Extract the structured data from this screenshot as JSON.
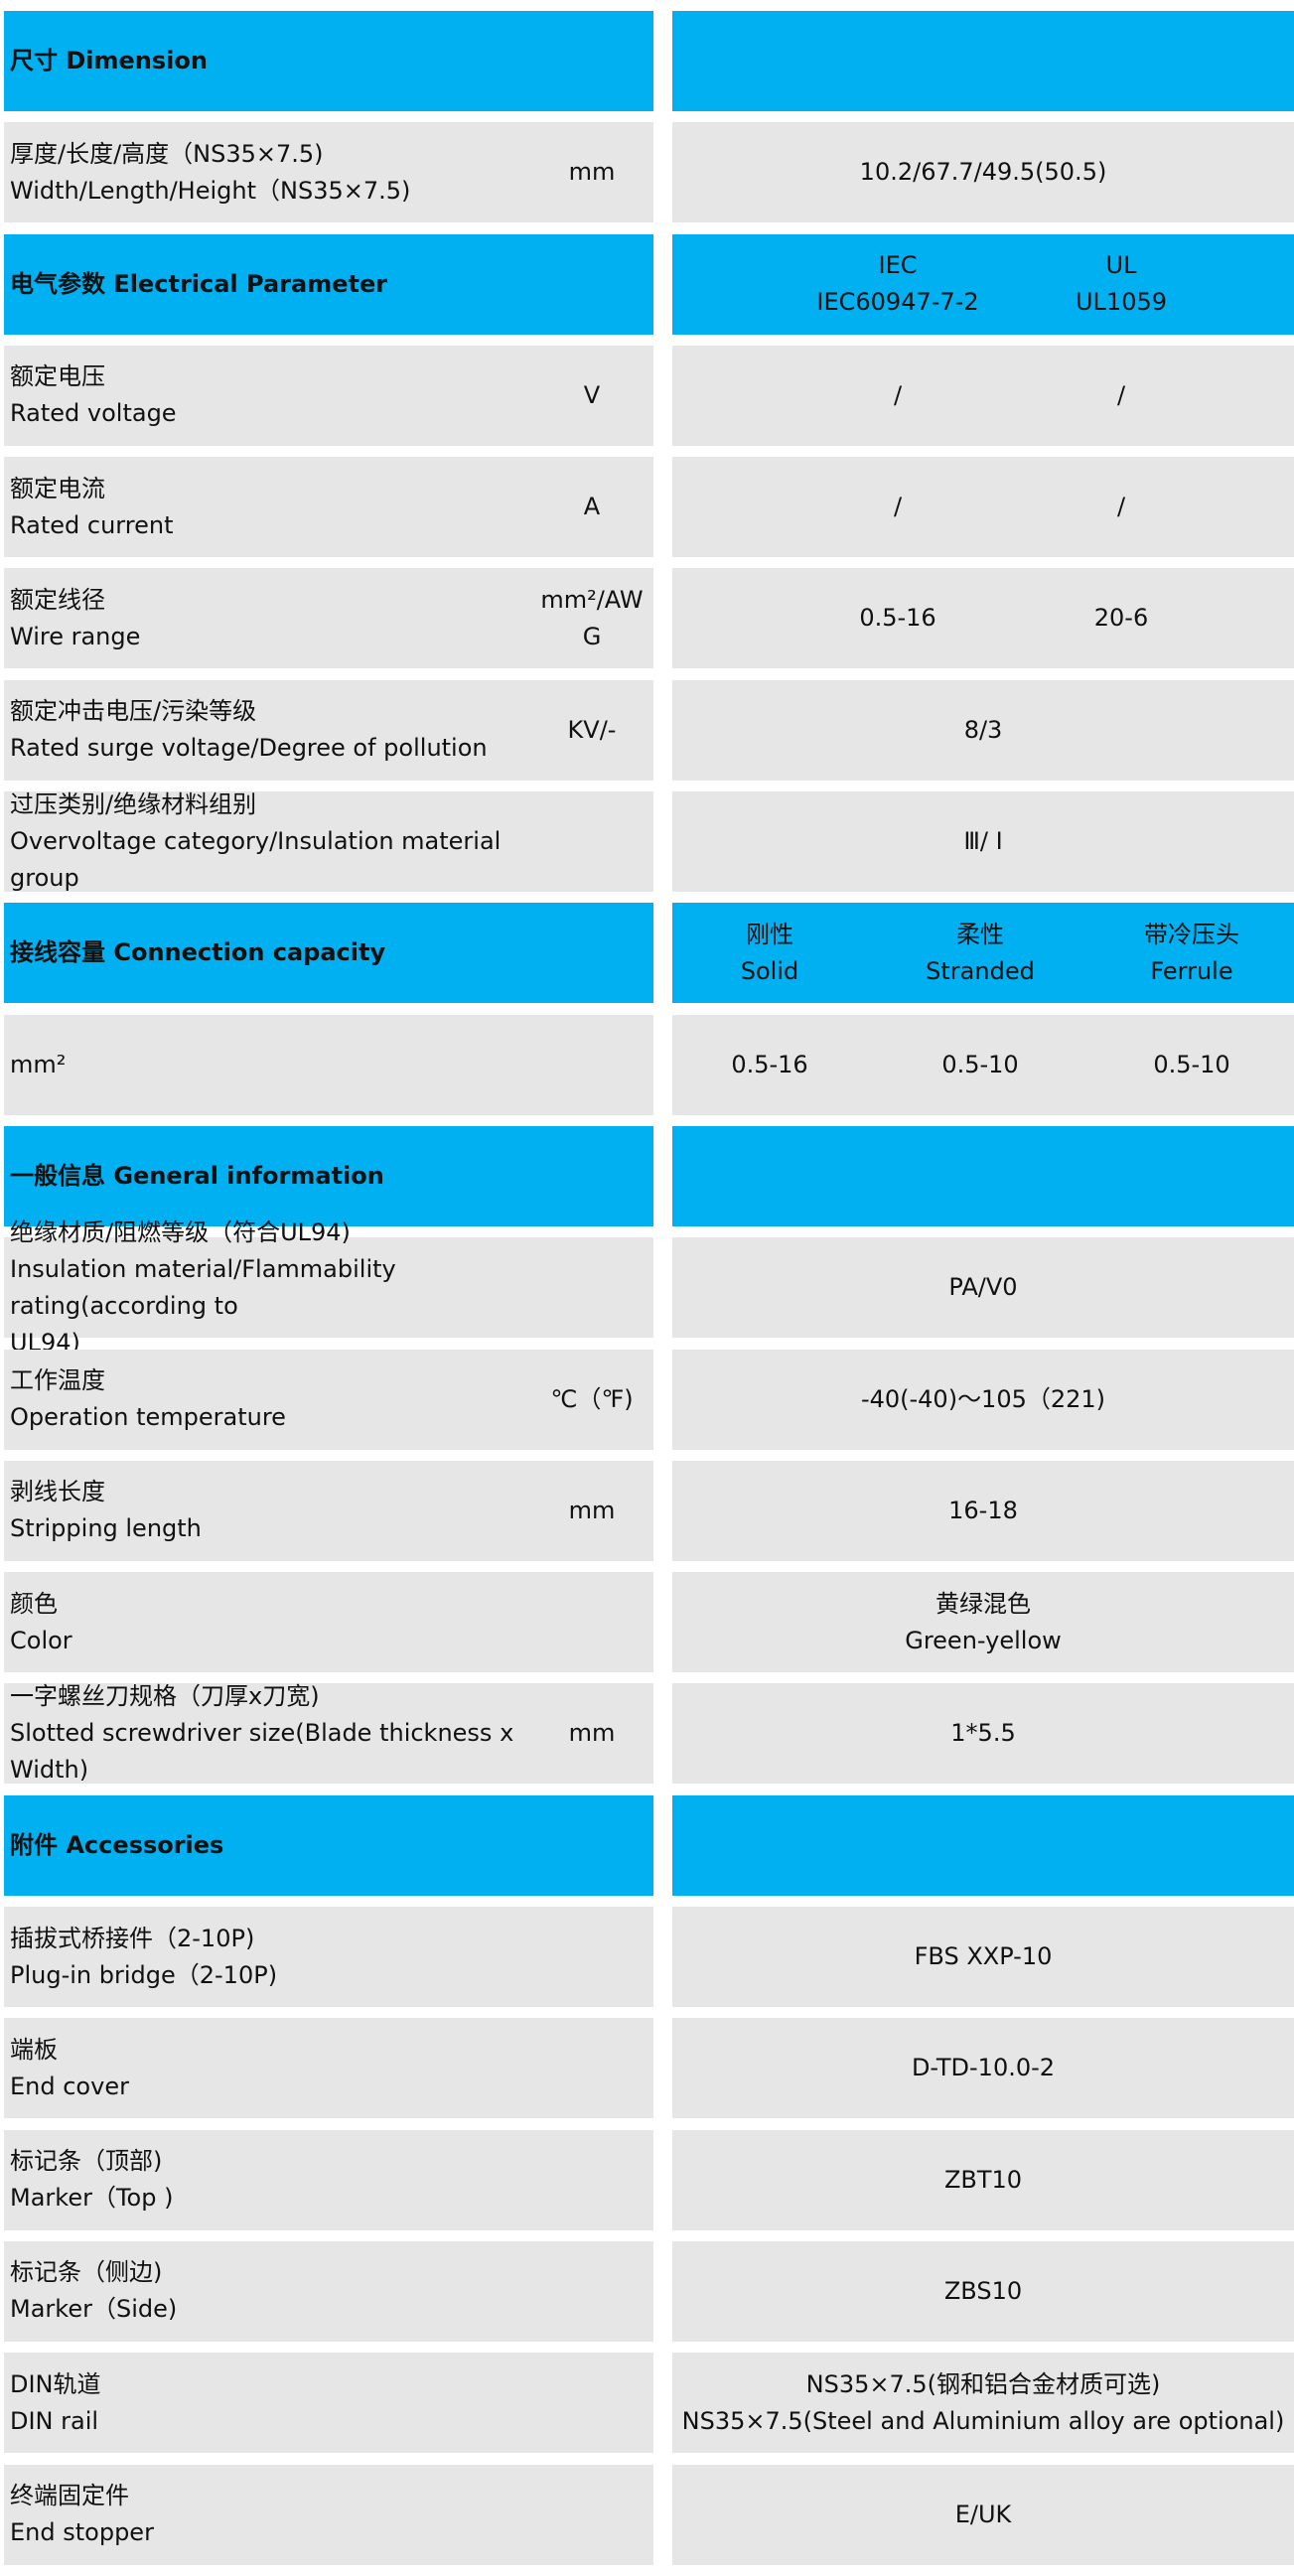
{
  "colors": {
    "header_bg": "#00b0f0",
    "row_bg": "#e7e6e6",
    "text": "#111111"
  },
  "rows": [
    {
      "type": "header",
      "label": [
        "尺寸 Dimension"
      ],
      "values": []
    },
    {
      "type": "data",
      "label": [
        "厚度/长度/高度（NS35×7.5)",
        "Width/Length/Height（NS35×7.5)"
      ],
      "unit": [
        "mm"
      ],
      "value": [
        "10.2/67.7/49.5(50.5)"
      ]
    },
    {
      "type": "header",
      "label": [
        "电气参数 Electrical Parameter"
      ],
      "cols": [
        [
          "IEC",
          "IEC60947-7-2"
        ],
        [
          "UL",
          "UL1059"
        ]
      ]
    },
    {
      "type": "data",
      "label": [
        "额定电压",
        "Rated voltage"
      ],
      "unit": [
        "V"
      ],
      "cols": [
        [
          "/"
        ],
        [
          "/"
        ]
      ]
    },
    {
      "type": "data",
      "label": [
        "额定电流",
        "Rated current"
      ],
      "unit": [
        "A"
      ],
      "cols": [
        [
          "/"
        ],
        [
          "/"
        ]
      ]
    },
    {
      "type": "data",
      "label": [
        "额定线径",
        "Wire range"
      ],
      "unit": [
        "mm²/AW",
        "G"
      ],
      "cols": [
        [
          "0.5-16"
        ],
        [
          "20-6"
        ]
      ]
    },
    {
      "type": "data",
      "label": [
        "额定冲击电压/污染等级",
        "Rated surge voltage/Degree of pollution"
      ],
      "unit": [
        "KV/-"
      ],
      "value": [
        "8/3"
      ]
    },
    {
      "type": "data",
      "label": [
        "过压类别/绝缘材料组别",
        "Overvoltage category/Insulation material group"
      ],
      "unit": [],
      "value": [
        "Ⅲ/ Ⅰ"
      ]
    },
    {
      "type": "header",
      "label": [
        "接线容量 Connection capacity"
      ],
      "cols3": [
        [
          "刚性",
          "Solid"
        ],
        [
          "柔性",
          "Stranded"
        ],
        [
          "带冷压头",
          "Ferrule"
        ]
      ]
    },
    {
      "type": "data",
      "label": [
        "mm²"
      ],
      "unit": [],
      "cols3": [
        [
          "0.5-16"
        ],
        [
          "0.5-10"
        ],
        [
          "0.5-10"
        ]
      ]
    },
    {
      "type": "header",
      "label": [
        "一般信息 General information"
      ],
      "values": []
    },
    {
      "type": "data",
      "label": [
        "绝缘材质/阻燃等级（符合UL94)",
        "Insulation material/Flammability rating(according to",
        "UL94)"
      ],
      "unit": [],
      "value": [
        "PA/V0"
      ]
    },
    {
      "type": "data",
      "label": [
        "工作温度",
        "Operation temperature"
      ],
      "unit": [
        "℃（℉)"
      ],
      "value": [
        "-40(-40)～105（221)"
      ]
    },
    {
      "type": "data",
      "label": [
        "剥线长度",
        "Stripping length"
      ],
      "unit": [
        "mm"
      ],
      "value": [
        "16-18"
      ]
    },
    {
      "type": "data",
      "label": [
        "颜色",
        "Color"
      ],
      "unit": [],
      "value": [
        "黄绿混色",
        "Green-yellow"
      ]
    },
    {
      "type": "data",
      "label": [
        "一字螺丝刀规格（刀厚x刀宽)",
        "Slotted screwdriver size(Blade thickness x",
        "Width)"
      ],
      "unit": [
        "mm"
      ],
      "value": [
        "1*5.5"
      ]
    },
    {
      "type": "header",
      "label": [
        "附件 Accessories"
      ],
      "values": []
    },
    {
      "type": "data",
      "label": [
        "插拔式桥接件（2-10P)",
        "Plug-in bridge（2-10P)"
      ],
      "unit": [],
      "value": [
        "FBS XXP-10"
      ]
    },
    {
      "type": "data",
      "label": [
        "端板",
        "End cover"
      ],
      "unit": [],
      "value": [
        "D-TD-10.0-2"
      ]
    },
    {
      "type": "data",
      "label": [
        "标记条（顶部)",
        "Marker（Top )"
      ],
      "unit": [],
      "value": [
        "ZBT10"
      ]
    },
    {
      "type": "data",
      "label": [
        "标记条（侧边)",
        "Marker（Side)"
      ],
      "unit": [],
      "value": [
        "ZBS10"
      ]
    },
    {
      "type": "data",
      "label": [
        "DIN轨道",
        "DIN rail"
      ],
      "unit": [],
      "value": [
        "NS35×7.5(钢和铝合金材质可选)",
        "NS35×7.5(Steel and Aluminium alloy are optional)"
      ]
    },
    {
      "type": "data",
      "label": [
        "终端固定件",
        "End stopper"
      ],
      "unit": [],
      "value": [
        "E/UK"
      ]
    }
  ]
}
